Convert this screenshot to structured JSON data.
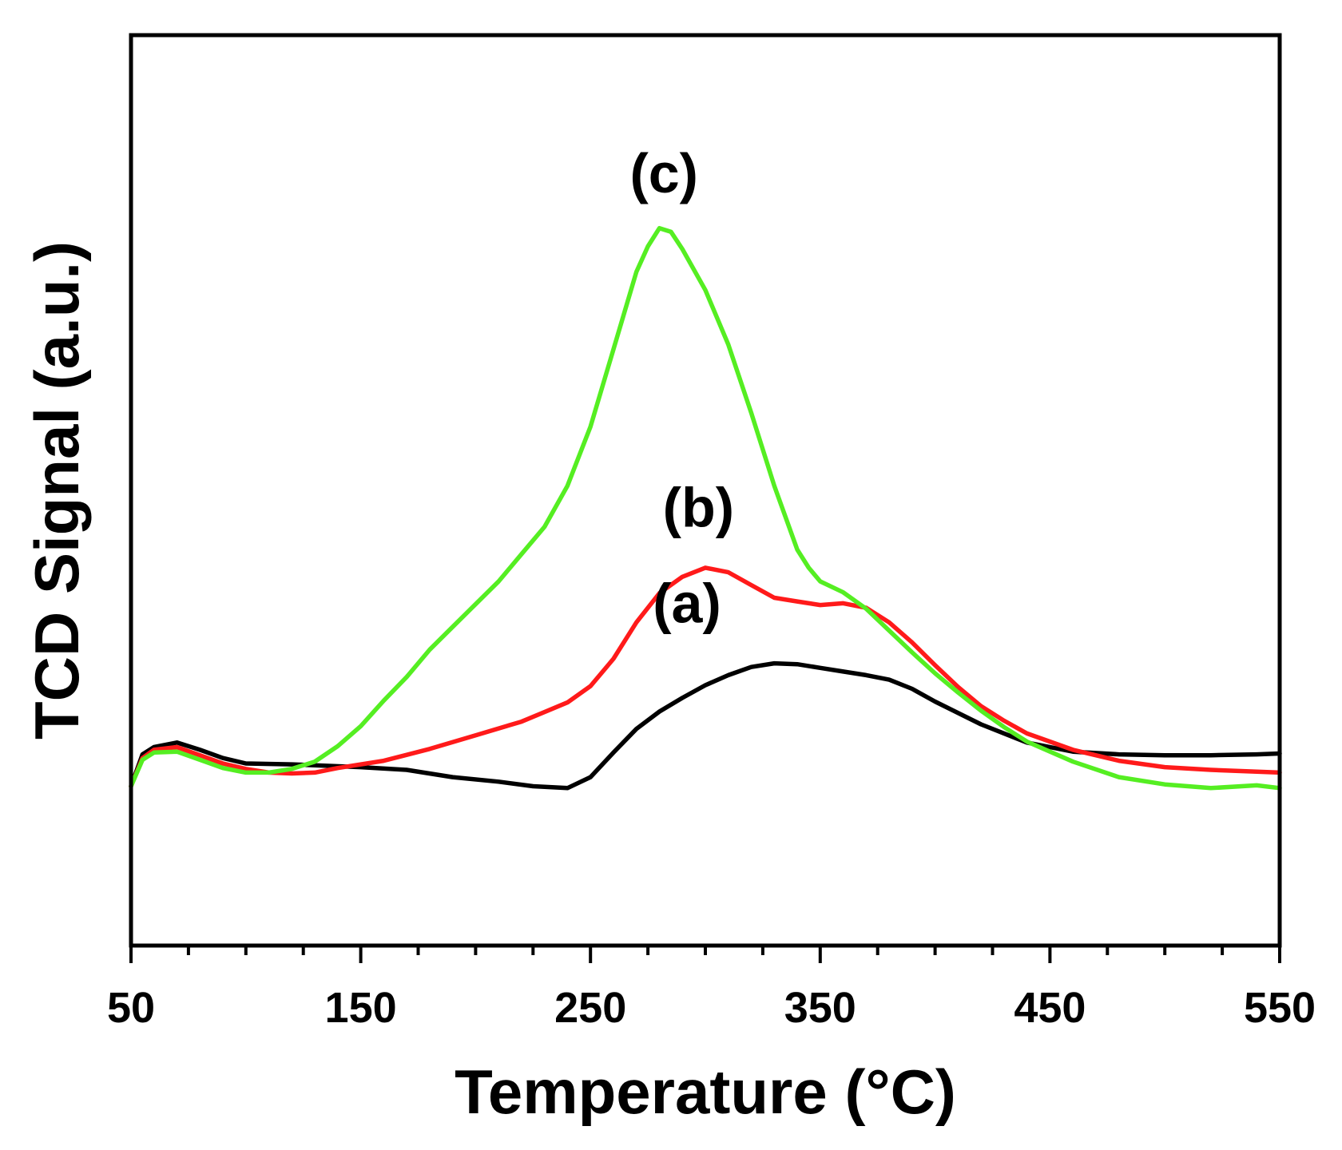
{
  "chart_data": {
    "type": "line",
    "title": "",
    "xlabel": "Temperature (°C)",
    "ylabel": "TCD Signal (a.u.)",
    "xlim": [
      50,
      550
    ],
    "ylim": [
      0,
      100
    ],
    "xticks": [
      "50",
      "150",
      "250",
      "350",
      "450",
      "550"
    ],
    "xtick_values": [
      50,
      150,
      250,
      350,
      450,
      550
    ],
    "x_minor_step": 25,
    "yticks_shown": false,
    "grid": false,
    "legend": "none",
    "series": [
      {
        "name": "(a)",
        "label": "(a)",
        "color": "#000000",
        "x": [
          50,
          55,
          60,
          70,
          80,
          90,
          100,
          120,
          150,
          170,
          190,
          210,
          225,
          240,
          250,
          260,
          270,
          280,
          290,
          300,
          310,
          320,
          330,
          340,
          350,
          360,
          370,
          380,
          390,
          400,
          420,
          440,
          460,
          480,
          500,
          520,
          540,
          550
        ],
        "y": [
          17.5,
          21,
          21.8,
          22.3,
          21.5,
          20.6,
          20.0,
          19.9,
          19.6,
          19.3,
          18.5,
          18.0,
          17.5,
          17.3,
          18.5,
          21.2,
          23.8,
          25.7,
          27.2,
          28.6,
          29.7,
          30.6,
          31.0,
          30.9,
          30.5,
          30.1,
          29.7,
          29.2,
          28.2,
          26.8,
          24.3,
          22.3,
          21.3,
          21.0,
          20.9,
          20.9,
          21.0,
          21.1
        ]
      },
      {
        "name": "(b)",
        "label": "(b)",
        "color": "#ff1a1a",
        "x": [
          50,
          55,
          60,
          70,
          80,
          90,
          100,
          110,
          120,
          130,
          140,
          160,
          180,
          200,
          220,
          240,
          250,
          260,
          270,
          280,
          290,
          300,
          310,
          320,
          330,
          340,
          350,
          360,
          370,
          380,
          390,
          400,
          410,
          420,
          430,
          440,
          460,
          480,
          500,
          520,
          540,
          550
        ],
        "y": [
          17.5,
          20.6,
          21.5,
          21.8,
          20.9,
          20.0,
          19.4,
          19.0,
          18.9,
          19.0,
          19.5,
          20.3,
          21.6,
          23.1,
          24.6,
          26.7,
          28.5,
          31.5,
          35.5,
          38.7,
          40.5,
          41.5,
          41.0,
          39.6,
          38.2,
          37.8,
          37.4,
          37.6,
          37.1,
          35.5,
          33.3,
          30.8,
          28.4,
          26.3,
          24.7,
          23.3,
          21.5,
          20.3,
          19.6,
          19.3,
          19.1,
          19.0
        ]
      },
      {
        "name": "(c)",
        "label": "(c)",
        "color": "#55ee22",
        "x": [
          50,
          55,
          60,
          70,
          80,
          90,
          100,
          110,
          120,
          130,
          140,
          150,
          160,
          170,
          180,
          190,
          200,
          210,
          220,
          230,
          240,
          250,
          260,
          270,
          275,
          280,
          285,
          290,
          300,
          310,
          320,
          330,
          340,
          345,
          350,
          360,
          370,
          380,
          390,
          400,
          410,
          420,
          430,
          440,
          460,
          480,
          500,
          520,
          540,
          550
        ],
        "y": [
          17.5,
          20.4,
          21.2,
          21.3,
          20.4,
          19.5,
          19.0,
          19.0,
          19.4,
          20.2,
          21.9,
          24.1,
          26.9,
          29.5,
          32.5,
          35.0,
          37.5,
          40.0,
          43.0,
          46.0,
          50.5,
          57.0,
          65.5,
          74.0,
          76.8,
          78.8,
          78.4,
          76.5,
          72.0,
          66.0,
          58.5,
          50.5,
          43.5,
          41.5,
          40.0,
          38.8,
          37.0,
          34.6,
          32.2,
          29.9,
          27.8,
          25.8,
          24.0,
          22.4,
          20.2,
          18.5,
          17.7,
          17.3,
          17.6,
          17.3
        ]
      }
    ],
    "annotations": [
      {
        "text": "(c)",
        "x": 282,
        "y": 82.7
      },
      {
        "text": "(b)",
        "x": 297,
        "y": 46.0
      },
      {
        "text": "(a)",
        "x": 292,
        "y": 35.5
      }
    ]
  }
}
